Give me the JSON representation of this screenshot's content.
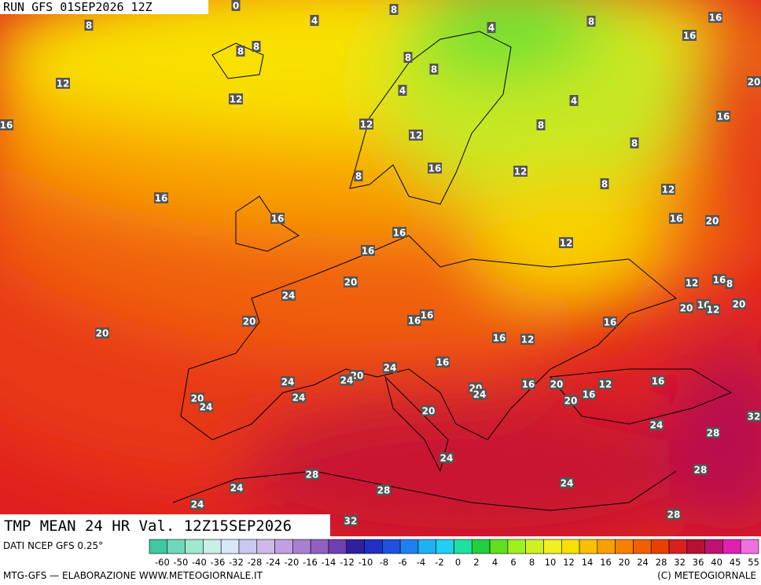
{
  "header": {
    "run": "RUN GFS 01SEP2026 12Z"
  },
  "title": "TMP MEAN 24 HR Val. 12Z15SEP2026",
  "source": "DATI NCEP GFS 0.25°",
  "footer_left": "MTG-GFS — ELABORAZIONE WWW.METEOGIORNALE.IT",
  "footer_right": "(C) METEOGIORNALE",
  "scale": {
    "labels": [
      -60,
      -50,
      -40,
      -36,
      -32,
      -28,
      -24,
      -20,
      -16,
      -14,
      -12,
      -10,
      -8,
      -6,
      -4,
      -2,
      0,
      2,
      4,
      6,
      8,
      10,
      12,
      14,
      16,
      20,
      24,
      28,
      32,
      36,
      40,
      45,
      55
    ],
    "colors": [
      "#40c8a0",
      "#70d8b8",
      "#a0e8d0",
      "#c8f0e8",
      "#d8e8f8",
      "#c8c8f0",
      "#d0b8e8",
      "#c0a0e0",
      "#a880d0",
      "#9060c0",
      "#7040b0",
      "#3020a0",
      "#2030c0",
      "#2050e0",
      "#2080f0",
      "#20b0f0",
      "#20d0f0",
      "#20e0a0",
      "#20d040",
      "#60e020",
      "#a0f020",
      "#d0f020",
      "#f0f020",
      "#f8e000",
      "#f8c000",
      "#f8a000",
      "#f88000",
      "#f06000",
      "#e84000",
      "#d82020",
      "#b81030",
      "#c01070",
      "#e020b0",
      "#f070e0"
    ]
  },
  "map_labels": [
    0,
    8,
    4,
    8,
    4,
    8,
    16,
    16,
    8,
    8,
    8,
    8,
    12,
    4,
    12,
    4,
    20,
    16,
    12,
    8,
    16,
    12,
    8,
    16,
    12,
    8,
    8,
    12,
    16,
    16,
    16,
    20,
    16,
    12,
    16,
    20,
    12,
    16,
    8,
    24,
    20,
    16,
    12,
    20,
    20,
    16,
    16,
    16,
    20,
    16,
    12,
    16,
    24,
    20,
    24,
    24,
    16,
    20,
    16,
    12,
    20,
    24,
    24,
    20,
    24,
    16,
    20,
    20,
    32,
    24,
    28,
    24,
    28,
    28,
    24,
    28,
    24,
    24,
    32,
    28
  ]
}
